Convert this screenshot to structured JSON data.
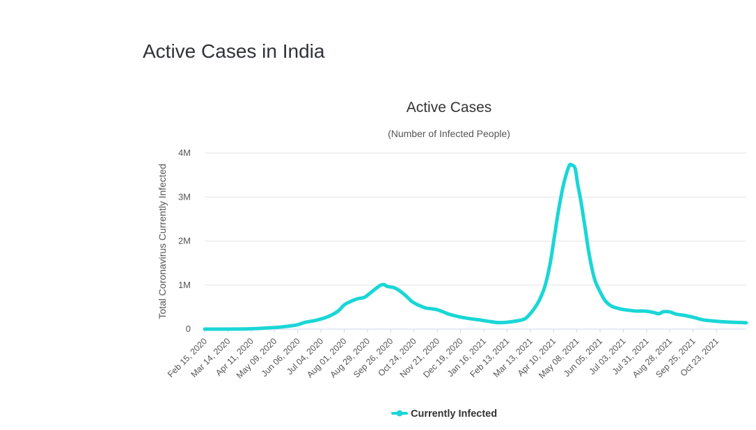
{
  "page": {
    "heading": "Active Cases in India"
  },
  "colors": {
    "series": "#1ad6d6",
    "grid": "#e6e6e6",
    "axis": "#ccd6eb"
  },
  "chart_data": {
    "type": "line",
    "title": "Active Cases",
    "subtitle": "(Number of Infected People)",
    "xlabel": "",
    "ylabel": "Total Coronavirus Currently Infected",
    "ylim": [
      0,
      4000000
    ],
    "y_ticks": [
      {
        "value": 0,
        "label": "0"
      },
      {
        "value": 1000000,
        "label": "1M"
      },
      {
        "value": 2000000,
        "label": "2M"
      },
      {
        "value": 3000000,
        "label": "3M"
      },
      {
        "value": 4000000,
        "label": "4M"
      }
    ],
    "x_day_range": [
      0,
      652
    ],
    "x_ticks": [
      {
        "day": 0,
        "label": "Feb 15, 2020"
      },
      {
        "day": 28,
        "label": "Mar 14, 2020"
      },
      {
        "day": 56,
        "label": "Apr 11, 2020"
      },
      {
        "day": 84,
        "label": "May 09, 2020"
      },
      {
        "day": 112,
        "label": "Jun 06, 2020"
      },
      {
        "day": 140,
        "label": "Jul 04, 2020"
      },
      {
        "day": 168,
        "label": "Aug 01, 2020"
      },
      {
        "day": 196,
        "label": "Aug 29, 2020"
      },
      {
        "day": 224,
        "label": "Sep 26, 2020"
      },
      {
        "day": 252,
        "label": "Oct 24, 2020"
      },
      {
        "day": 280,
        "label": "Nov 21, 2020"
      },
      {
        "day": 308,
        "label": "Dec 19, 2020"
      },
      {
        "day": 336,
        "label": "Jan 16, 2021"
      },
      {
        "day": 364,
        "label": "Feb 13, 2021"
      },
      {
        "day": 392,
        "label": "Mar 13, 2021"
      },
      {
        "day": 420,
        "label": "Apr 10, 2021"
      },
      {
        "day": 448,
        "label": "May 08, 2021"
      },
      {
        "day": 476,
        "label": "Jun 05, 2021"
      },
      {
        "day": 504,
        "label": "Jul 03, 2021"
      },
      {
        "day": 532,
        "label": "Jul 31, 2021"
      },
      {
        "day": 560,
        "label": "Aug 28, 2021"
      },
      {
        "day": 588,
        "label": "Sep 25, 2021"
      },
      {
        "day": 616,
        "label": "Oct 23, 2021"
      }
    ],
    "legend": {
      "position": "bottom-center"
    },
    "series": [
      {
        "name": "Currently Infected",
        "points": [
          [
            0,
            3
          ],
          [
            28,
            400
          ],
          [
            42,
            2000
          ],
          [
            56,
            8000
          ],
          [
            70,
            20000
          ],
          [
            84,
            35000
          ],
          [
            98,
            60000
          ],
          [
            112,
            100000
          ],
          [
            120,
            150000
          ],
          [
            134,
            200000
          ],
          [
            148,
            280000
          ],
          [
            160,
            400000
          ],
          [
            168,
            550000
          ],
          [
            176,
            630000
          ],
          [
            184,
            690000
          ],
          [
            192,
            720000
          ],
          [
            198,
            800000
          ],
          [
            206,
            920000
          ],
          [
            212,
            1000000
          ],
          [
            216,
            1010000
          ],
          [
            220,
            970000
          ],
          [
            228,
            940000
          ],
          [
            234,
            880000
          ],
          [
            242,
            760000
          ],
          [
            250,
            620000
          ],
          [
            258,
            540000
          ],
          [
            266,
            480000
          ],
          [
            274,
            460000
          ],
          [
            280,
            440000
          ],
          [
            286,
            400000
          ],
          [
            294,
            340000
          ],
          [
            302,
            300000
          ],
          [
            312,
            260000
          ],
          [
            322,
            230000
          ],
          [
            334,
            200000
          ],
          [
            344,
            170000
          ],
          [
            352,
            150000
          ],
          [
            360,
            150000
          ],
          [
            370,
            170000
          ],
          [
            380,
            200000
          ],
          [
            386,
            240000
          ],
          [
            392,
            350000
          ],
          [
            398,
            500000
          ],
          [
            404,
            700000
          ],
          [
            410,
            1000000
          ],
          [
            416,
            1500000
          ],
          [
            421,
            2100000
          ],
          [
            426,
            2700000
          ],
          [
            431,
            3200000
          ],
          [
            435,
            3500000
          ],
          [
            439,
            3720000
          ],
          [
            442,
            3730000
          ],
          [
            446,
            3650000
          ],
          [
            449,
            3300000
          ],
          [
            453,
            2900000
          ],
          [
            458,
            2300000
          ],
          [
            462,
            1800000
          ],
          [
            466,
            1400000
          ],
          [
            470,
            1100000
          ],
          [
            476,
            850000
          ],
          [
            482,
            650000
          ],
          [
            490,
            520000
          ],
          [
            500,
            460000
          ],
          [
            510,
            430000
          ],
          [
            520,
            410000
          ],
          [
            530,
            410000
          ],
          [
            540,
            380000
          ],
          [
            547,
            350000
          ],
          [
            551,
            390000
          ],
          [
            555,
            400000
          ],
          [
            560,
            390000
          ],
          [
            568,
            340000
          ],
          [
            578,
            310000
          ],
          [
            590,
            260000
          ],
          [
            600,
            210000
          ],
          [
            615,
            180000
          ],
          [
            630,
            160000
          ],
          [
            645,
            150000
          ],
          [
            652,
            145000
          ]
        ]
      }
    ]
  }
}
